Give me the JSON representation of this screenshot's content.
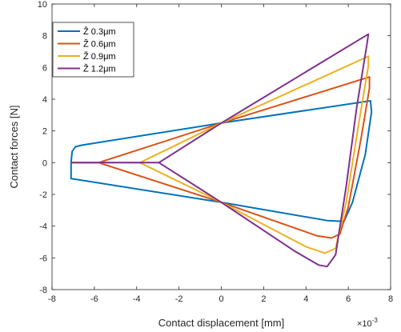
{
  "chart_data": {
    "type": "line",
    "xlabel": "Contact displacement [mm]",
    "ylabel": "Contact forces [N]",
    "x_exponent_label": "×10",
    "x_exponent_power": "-3",
    "xlim": [
      -8,
      8
    ],
    "ylim": [
      -8,
      10
    ],
    "x_ticks": [
      -8,
      -6,
      -4,
      -2,
      0,
      2,
      4,
      6,
      8
    ],
    "y_ticks": [
      -8,
      -6,
      -4,
      -2,
      0,
      2,
      4,
      6,
      8,
      10
    ],
    "x_tick_labels": [
      "-8",
      "-6",
      "-4",
      "-2",
      "0",
      "2",
      "4",
      "6",
      "8"
    ],
    "y_tick_labels": [
      "-8",
      "-6",
      "-4",
      "-2",
      "0",
      "2",
      "4",
      "6",
      "8",
      "10"
    ],
    "grid": false,
    "legend_position": "top-left",
    "series": [
      {
        "name": "Ž 0.3μm",
        "color": "#0072BD",
        "points": [
          [
            -7.1,
            0
          ],
          [
            -7.05,
            0.7
          ],
          [
            -6.9,
            1.0
          ],
          [
            -6.6,
            1.1
          ],
          [
            0,
            2.5
          ],
          [
            7.05,
            3.9
          ],
          [
            7.1,
            3.2
          ],
          [
            6.8,
            0.5
          ],
          [
            6.2,
            -2.5
          ],
          [
            5.8,
            -3.7
          ],
          [
            5.0,
            -3.65
          ],
          [
            0,
            -2.5
          ],
          [
            -7.1,
            -1.0
          ],
          [
            -7.1,
            0
          ]
        ]
      },
      {
        "name": "Ž 0.6μm",
        "color": "#D95319",
        "points": [
          [
            -7.1,
            0
          ],
          [
            -6.2,
            0
          ],
          [
            -5.8,
            0
          ],
          [
            0,
            2.5
          ],
          [
            7.0,
            5.4
          ],
          [
            7.0,
            4.7
          ],
          [
            6.6,
            1.5
          ],
          [
            6.0,
            -2.8
          ],
          [
            5.6,
            -4.5
          ],
          [
            5.2,
            -4.75
          ],
          [
            4.5,
            -4.6
          ],
          [
            0,
            -2.5
          ],
          [
            -5.8,
            0
          ],
          [
            -7.1,
            0
          ]
        ]
      },
      {
        "name": "Ž 0.9μm",
        "color": "#EDB120",
        "points": [
          [
            -7.1,
            0
          ],
          [
            -4.0,
            0
          ],
          [
            -3.85,
            0
          ],
          [
            0,
            2.5
          ],
          [
            6.95,
            6.7
          ],
          [
            6.95,
            6.1
          ],
          [
            6.5,
            2.5
          ],
          [
            5.9,
            -2.5
          ],
          [
            5.4,
            -5.4
          ],
          [
            4.9,
            -5.7
          ],
          [
            4.0,
            -5.3
          ],
          [
            0,
            -2.5
          ],
          [
            -3.85,
            0
          ],
          [
            -7.1,
            0
          ]
        ]
      },
      {
        "name": "Ž 1.2μm",
        "color": "#7E2F8E",
        "points": [
          [
            -7.1,
            0
          ],
          [
            -3.0,
            0
          ],
          [
            -2.95,
            0
          ],
          [
            0,
            2.5
          ],
          [
            6.95,
            8.1
          ],
          [
            6.9,
            7.6
          ],
          [
            6.4,
            3.5
          ],
          [
            5.9,
            -1.5
          ],
          [
            5.4,
            -5.8
          ],
          [
            5.0,
            -6.55
          ],
          [
            4.6,
            -6.45
          ],
          [
            3.5,
            -5.6
          ],
          [
            0,
            -2.5
          ],
          [
            -2.95,
            0
          ],
          [
            -7.1,
            0
          ]
        ]
      }
    ]
  }
}
